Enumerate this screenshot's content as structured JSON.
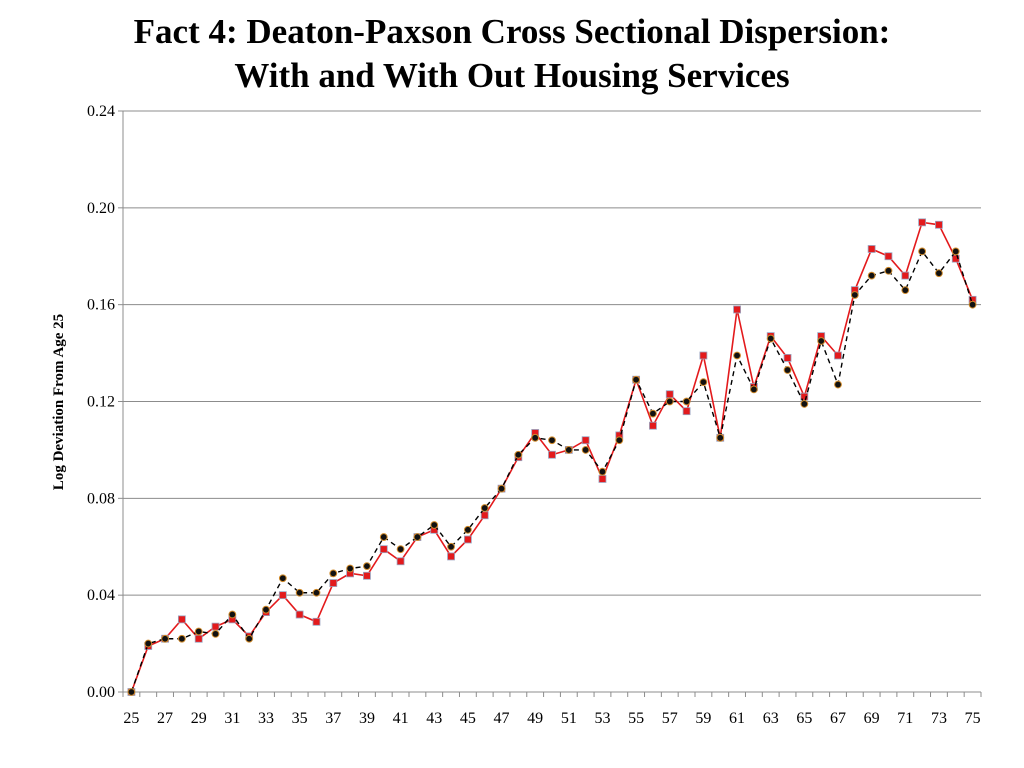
{
  "slide": {
    "title_line1": "Fact 4:  Deaton-Paxson Cross Sectional Dispersion:",
    "title_line2": "With and With Out Housing Services"
  },
  "chart_data": {
    "type": "line",
    "title": "Fact 4:  Deaton-Paxson Cross Sectional Dispersion: With and With Out Housing Services",
    "xlabel": "",
    "ylabel": "Log Deviation From Age 25",
    "ylim": [
      0,
      0.24
    ],
    "yticks": [
      "0.00",
      "0.04",
      "0.08",
      "0.12",
      "0.16",
      "0.20",
      "0.24"
    ],
    "xticks": [
      "25",
      "27",
      "29",
      "31",
      "33",
      "35",
      "37",
      "39",
      "41",
      "43",
      "45",
      "47",
      "49",
      "51",
      "53",
      "55",
      "57",
      "59",
      "61",
      "63",
      "65",
      "67",
      "69",
      "71",
      "73",
      "75"
    ],
    "grid": true,
    "legend": "none",
    "x": [
      25,
      26,
      27,
      28,
      29,
      30,
      31,
      32,
      33,
      34,
      35,
      36,
      37,
      38,
      39,
      40,
      41,
      42,
      43,
      44,
      45,
      46,
      47,
      48,
      49,
      50,
      51,
      52,
      53,
      54,
      55,
      56,
      57,
      58,
      59,
      60,
      61,
      62,
      63,
      64,
      65,
      66,
      67,
      68,
      69,
      70,
      71,
      72,
      73,
      74,
      75
    ],
    "series": [
      {
        "style": "solid-red-square",
        "color": "#e31a1c",
        "values": [
          0.0,
          0.019,
          0.022,
          0.03,
          0.022,
          0.027,
          0.03,
          0.023,
          0.033,
          0.04,
          0.032,
          0.029,
          0.045,
          0.049,
          0.048,
          0.059,
          0.054,
          0.064,
          0.067,
          0.056,
          0.063,
          0.073,
          0.084,
          0.097,
          0.107,
          0.098,
          0.1,
          0.104,
          0.088,
          0.106,
          0.129,
          0.11,
          0.123,
          0.116,
          0.139,
          0.105,
          0.158,
          0.126,
          0.147,
          0.138,
          0.122,
          0.147,
          0.139,
          0.166,
          0.183,
          0.18,
          0.172,
          0.194,
          0.193,
          0.179,
          0.162
        ]
      },
      {
        "style": "dashed-black-circle",
        "color": "#000000",
        "values": [
          0.0,
          0.02,
          0.022,
          0.022,
          0.025,
          0.024,
          0.032,
          0.022,
          0.034,
          0.047,
          0.041,
          0.041,
          0.049,
          0.051,
          0.052,
          0.064,
          0.059,
          0.064,
          0.069,
          0.06,
          0.067,
          0.076,
          0.084,
          0.098,
          0.105,
          0.104,
          0.1,
          0.1,
          0.091,
          0.104,
          0.129,
          0.115,
          0.12,
          0.12,
          0.128,
          0.105,
          0.139,
          0.125,
          0.146,
          0.133,
          0.119,
          0.145,
          0.127,
          0.164,
          0.172,
          0.174,
          0.166,
          0.182,
          0.173,
          0.182,
          0.16
        ]
      }
    ]
  }
}
